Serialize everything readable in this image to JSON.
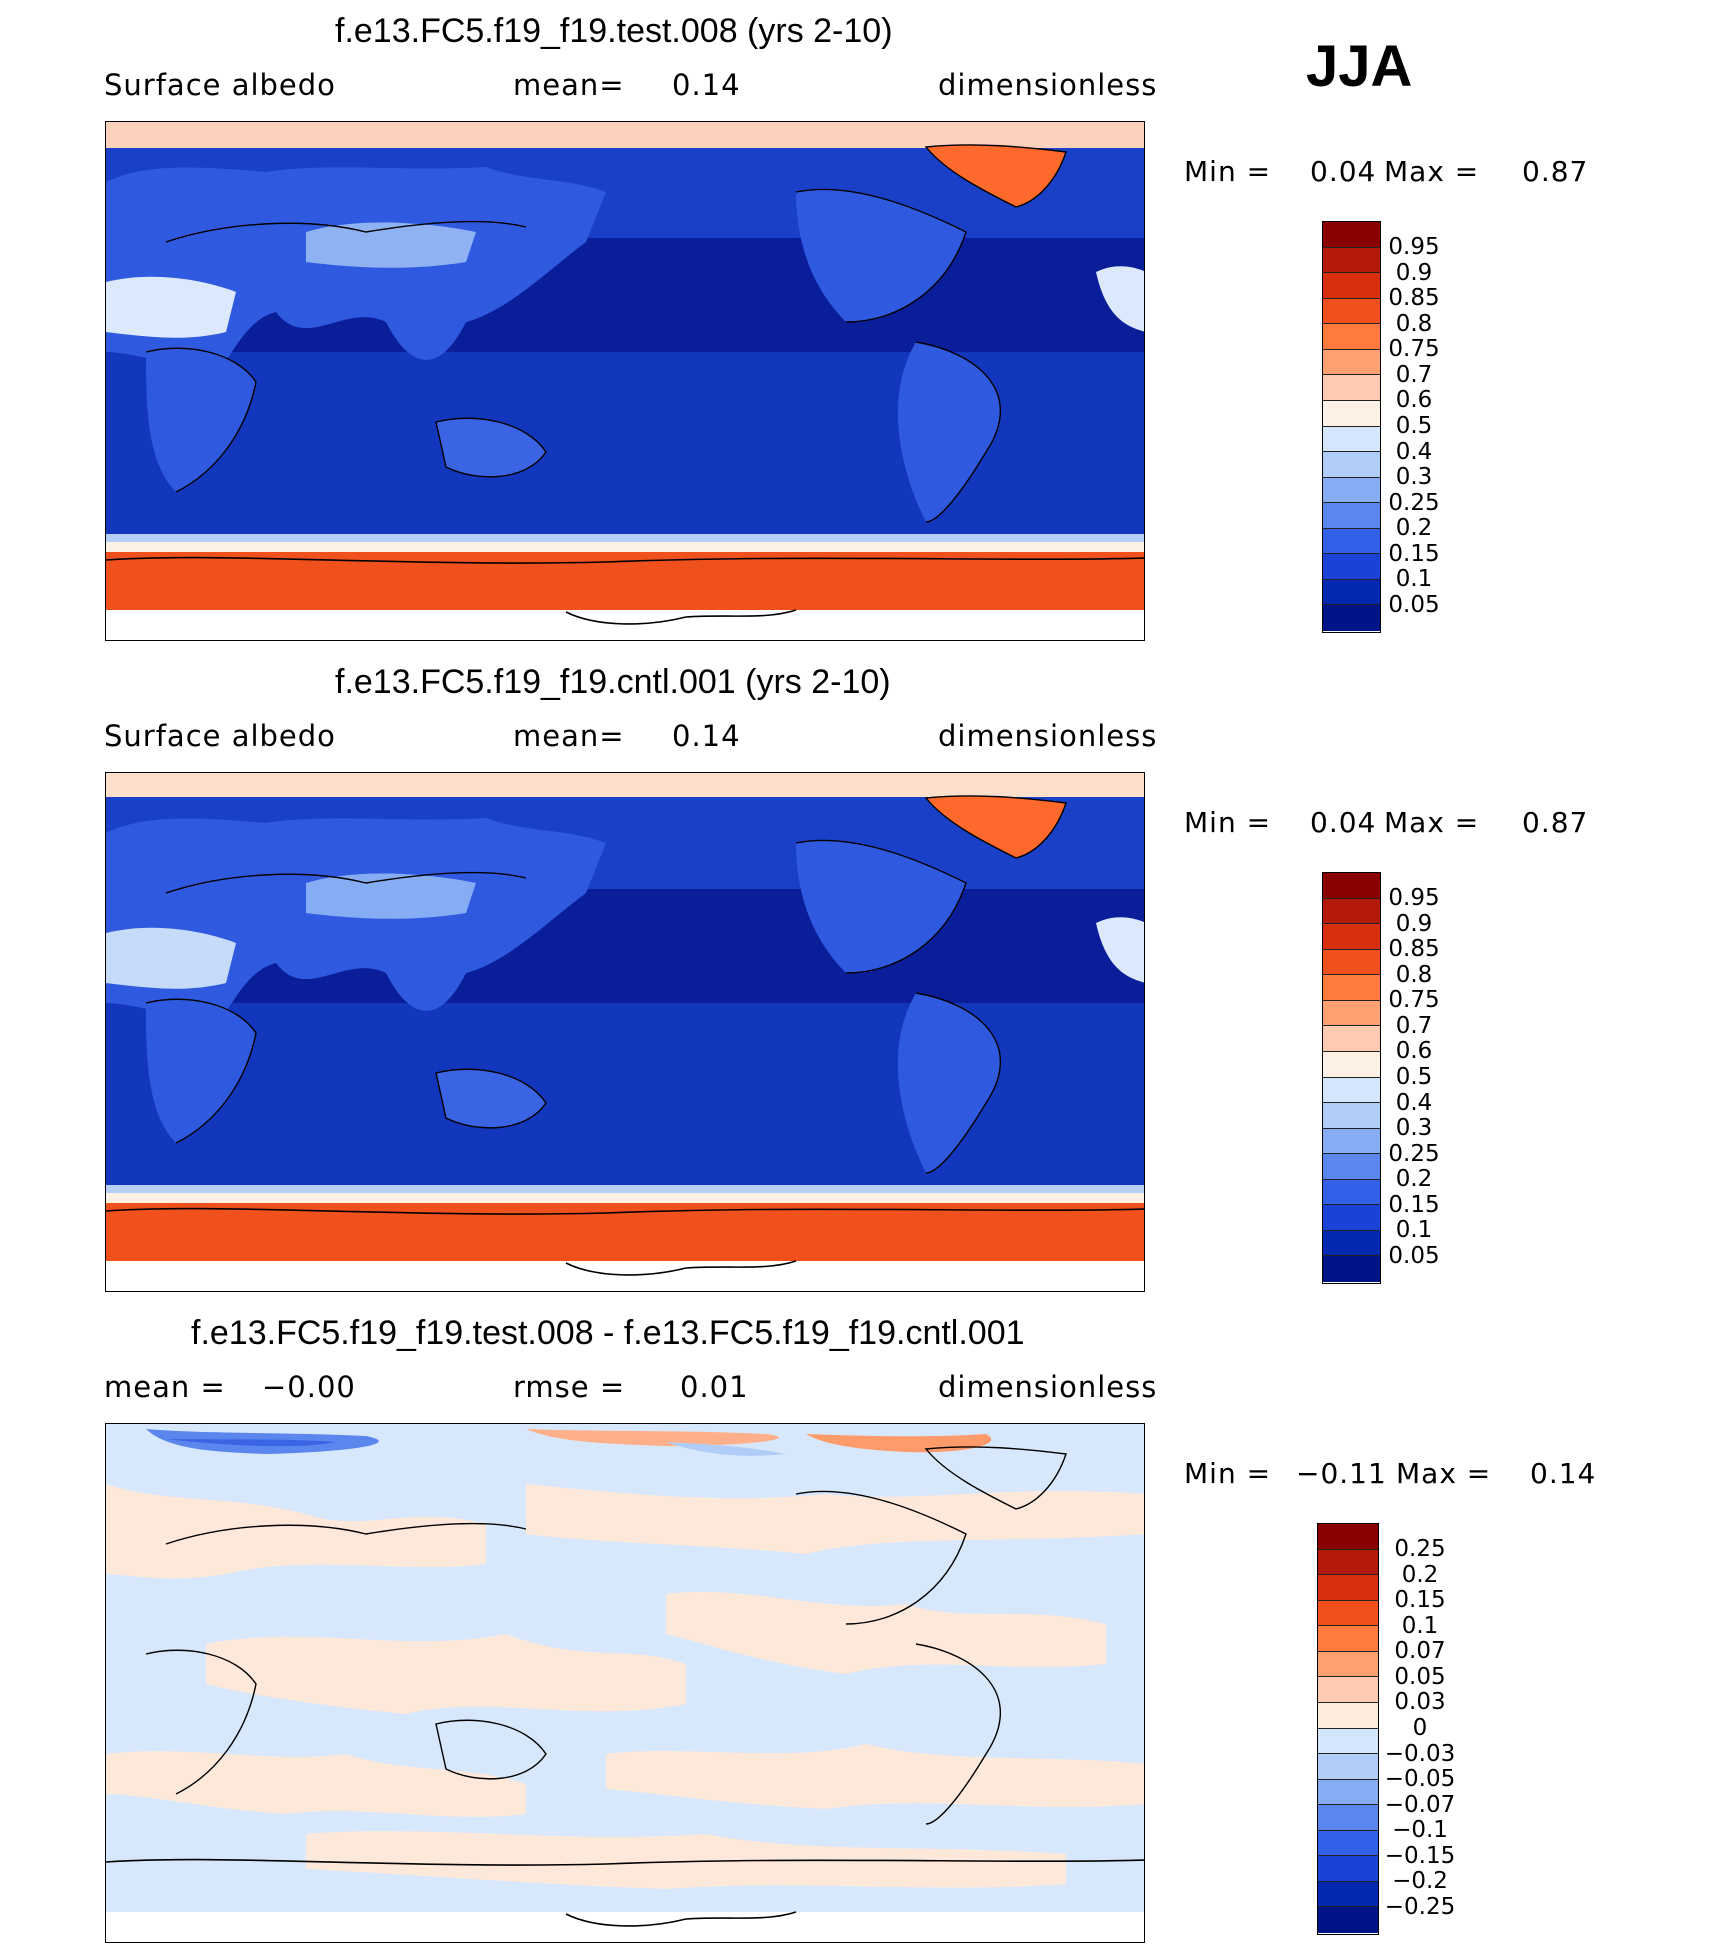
{
  "season": "JJA",
  "panels": [
    {
      "title": "f.e13.FC5.f19_f19.test.008 (yrs 2-10)",
      "variable": "Surface albedo",
      "stat_label": "mean=",
      "stat_value": "0.14",
      "units": "dimensionless",
      "min_label": "Min =",
      "min_value": "0.04",
      "max_label": "Max =",
      "max_value": "0.87"
    },
    {
      "title": "f.e13.FC5.f19_f19.cntl.001 (yrs 2-10)",
      "variable": "Surface albedo",
      "stat_label": "mean=",
      "stat_value": "0.14",
      "units": "dimensionless",
      "min_label": "Min =",
      "min_value": "0.04",
      "max_label": "Max =",
      "max_value": "0.87"
    },
    {
      "title": "f.e13.FC5.f19_f19.test.008 - f.e13.FC5.f19_f19.cntl.001",
      "mean_label": "mean =",
      "mean_value": "−0.00",
      "rmse_label": "rmse =",
      "rmse_value": "0.01",
      "units": "dimensionless",
      "min_label": "Min =",
      "min_value": "−0.11",
      "max_label": "Max =",
      "max_value": "0.14"
    }
  ],
  "colorbar_field": {
    "levels": [
      "0.95",
      "0.9",
      "0.85",
      "0.8",
      "0.75",
      "0.7",
      "0.6",
      "0.5",
      "0.4",
      "0.3",
      "0.25",
      "0.2",
      "0.15",
      "0.1",
      "0.05"
    ],
    "colors": [
      "#8b0000",
      "#b41a0a",
      "#d8300e",
      "#f0501c",
      "#ff7a3c",
      "#ffa070",
      "#ffcbb0",
      "#fdf0e4",
      "#d4e6fc",
      "#b0cdf8",
      "#86acf4",
      "#5a86ee",
      "#3360e8",
      "#1a42d4",
      "#0528b0",
      "#001488"
    ]
  },
  "colorbar_diff": {
    "levels": [
      "0.25",
      "0.2",
      "0.15",
      "0.1",
      "0.07",
      "0.05",
      "0.03",
      "0",
      "−0.03",
      "−0.05",
      "−0.07",
      "−0.1",
      "−0.15",
      "−0.2",
      "−0.25"
    ],
    "colors": [
      "#8b0000",
      "#b41a0a",
      "#d8300e",
      "#f0501c",
      "#ff7a3c",
      "#ffa070",
      "#ffcbb0",
      "#fdebdc",
      "#d4e6fc",
      "#b0cdf8",
      "#86acf4",
      "#5a86ee",
      "#3360e8",
      "#1a42d4",
      "#0528b0",
      "#001488"
    ]
  }
}
